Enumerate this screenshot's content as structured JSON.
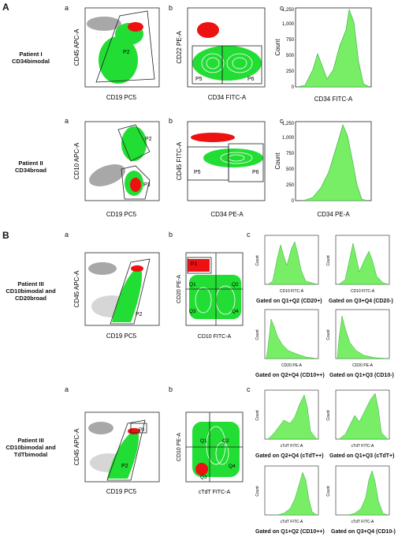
{
  "colors": {
    "positive": "#22dd33",
    "gated": "#ee1111",
    "negative": "#999999",
    "histogram": "#77ee66"
  },
  "sections": {
    "a": "A",
    "b": "B"
  },
  "panel_letters": {
    "a": "a",
    "b": "b",
    "c": "c"
  },
  "patients": [
    {
      "name": "Patient I",
      "sub": "CD34bimodal"
    },
    {
      "name": "Patient II",
      "sub": "CD34broad"
    },
    {
      "name": "Patient III",
      "sub": "CD10bimodal and CD20broad"
    },
    {
      "name": "Patient III",
      "sub": "CD10bimodal and TdTbimodal"
    }
  ],
  "axis": {
    "cd19_pc5": "CD19 PC5",
    "cd45_apc": "CD45 APC-A",
    "cd34_fitc": "CD34 FITC-A",
    "cd22_pe": "CD22 PE-A",
    "cd10_apc": "CD10 APC-A",
    "cd45_fitc": "CD45 FITC-A",
    "cd34_pe": "CD34 PE-A",
    "cd20_pe": "CD20 PE-A",
    "cd10_fitc": "CD10 FITC-A",
    "cd10_pe": "CD10 PE-A",
    "ctdt_fitc": "cTdT FITC-A",
    "count": "Count"
  },
  "gates": {
    "p1": "P1",
    "p2": "P2",
    "p3": "P3",
    "p5": "P5",
    "p6": "P6",
    "q1": "Q1",
    "q2": "Q2",
    "q3": "Q3",
    "q4": "Q4"
  },
  "histograms": {
    "patient1": {
      "yticks": [
        "0",
        "250",
        "500",
        "750",
        "1,000",
        "1,250"
      ]
    },
    "patient2": {
      "yticks": [
        "0",
        "250",
        "500",
        "750",
        "1,000",
        "1,250"
      ]
    }
  },
  "gated_labels": [
    "Gated on Q1+Q2 (CD20+)",
    "Gated on Q3+Q4 (CD20-)",
    "Gated on Q2+Q4 (CD10++)",
    "Gated on Q1+Q3 (CD10-)",
    "Gated on Q2+Q4 (cTdT++)",
    "Gated on Q1+Q3 (cTdT+)",
    "Gated on Q1+Q2 (CD10++)",
    "Gated on Q3+Q4 (CD10-)"
  ]
}
